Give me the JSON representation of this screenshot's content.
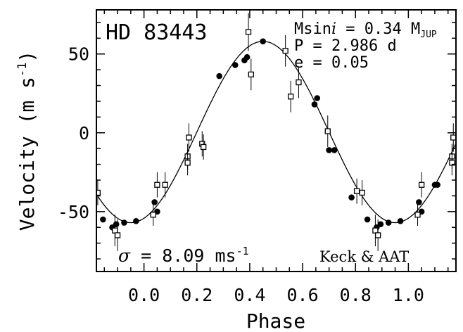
{
  "chart_data": {
    "type": "scatter",
    "title": "HD 83443",
    "xlabel": "Phase",
    "ylabel": "Velocity (m s",
    "ylabel_sup": "-1",
    "ylabel_tail": ")",
    "xlim": [
      -0.18,
      1.18
    ],
    "ylim": [
      -88,
      78
    ],
    "xticks": [
      0.0,
      0.2,
      0.4,
      0.6,
      0.8,
      1.0
    ],
    "xtick_labels": [
      "0.0",
      "0.2",
      "0.4",
      "0.6",
      "0.8",
      "1.0"
    ],
    "yticks": [
      -50,
      0,
      50
    ],
    "ytick_labels": [
      "-50",
      "0",
      "50"
    ],
    "annotations": {
      "msini_prefix": "Msin",
      "msini_i": "i",
      "msini_value": " = 0.34 M",
      "msini_sub": "JUP",
      "period": "P = 2.986 d",
      "ecc": "e = 0.05",
      "sigma_symbol": "σ",
      "sigma_text": " = 8.09 ms",
      "sigma_sup": "-1",
      "instruments": "Keck & AAT"
    },
    "model_curve": {
      "K": 57.5,
      "phase_of_max": 0.45,
      "offset": 0.5
    },
    "series": [
      {
        "marker": "filled-circle",
        "points": [
          [
            -0.155,
            -55
          ],
          [
            -0.12,
            -60
          ],
          [
            -0.105,
            -58
          ],
          [
            -0.075,
            -57
          ],
          [
            -0.03,
            -56
          ],
          [
            0.04,
            -44
          ],
          [
            0.05,
            -50
          ],
          [
            0.285,
            36
          ],
          [
            0.345,
            43
          ],
          [
            0.38,
            46
          ],
          [
            0.39,
            48
          ],
          [
            0.45,
            58
          ],
          [
            0.645,
            18
          ],
          [
            0.655,
            22
          ],
          [
            0.7,
            -11
          ],
          [
            0.72,
            -11
          ],
          [
            0.785,
            -41
          ],
          [
            0.845,
            -55
          ],
          [
            0.88,
            -60
          ],
          [
            0.895,
            -58
          ],
          [
            0.925,
            -57
          ],
          [
            0.97,
            -56
          ],
          [
            1.04,
            -44
          ],
          [
            1.05,
            -50
          ],
          [
            1.1,
            -33
          ],
          [
            1.11,
            -33
          ]
        ]
      },
      {
        "marker": "open-square",
        "points": [
          [
            -0.175,
            -38,
            8
          ],
          [
            -0.11,
            -62,
            10
          ],
          [
            -0.1,
            -65,
            10
          ],
          [
            0.035,
            -52,
            7
          ],
          [
            0.05,
            -33,
            8
          ],
          [
            0.08,
            -33,
            8
          ],
          [
            0.165,
            -15,
            8
          ],
          [
            0.165,
            -19,
            8
          ],
          [
            0.17,
            -3,
            9
          ],
          [
            0.22,
            -7,
            8
          ],
          [
            0.225,
            -9,
            8
          ],
          [
            0.395,
            64,
            12
          ],
          [
            0.405,
            37,
            10
          ],
          [
            0.535,
            52,
            10
          ],
          [
            0.555,
            23,
            10
          ],
          [
            0.585,
            32,
            10
          ],
          [
            0.695,
            1,
            10
          ],
          [
            0.805,
            -37,
            8
          ],
          [
            0.825,
            -38,
            8
          ],
          [
            0.875,
            -62,
            10
          ],
          [
            0.885,
            -65,
            10
          ],
          [
            1.035,
            -52,
            7
          ],
          [
            1.05,
            -33,
            8
          ],
          [
            1.165,
            -15,
            8
          ],
          [
            1.165,
            -19,
            8
          ],
          [
            1.17,
            -3,
            9
          ]
        ]
      }
    ]
  }
}
